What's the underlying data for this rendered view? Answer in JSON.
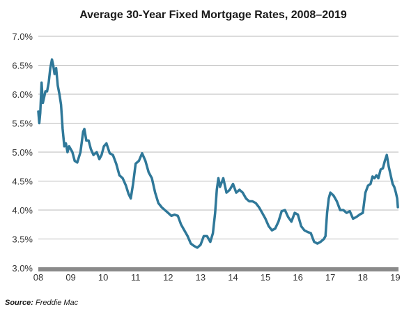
{
  "chart_data": {
    "type": "line",
    "title": "Average 30-Year Fixed Mortgage Rates, 2008–2019",
    "xlabel": "",
    "ylabel": "",
    "ylim": [
      3.0,
      7.0
    ],
    "xlim": [
      2008,
      2019.1
    ],
    "yticks": [
      3.0,
      3.5,
      4.0,
      4.5,
      5.0,
      5.5,
      6.0,
      6.5,
      7.0
    ],
    "ytick_labels": [
      "3.0%",
      "3.5%",
      "4.0%",
      "4.5%",
      "5.0%",
      "5.5%",
      "6.0%",
      "6.5%",
      "7.0%"
    ],
    "xticks": [
      2008,
      2009,
      2010,
      2011,
      2012,
      2013,
      2014,
      2015,
      2016,
      2017,
      2018,
      2019
    ],
    "xtick_labels": [
      "08",
      "09",
      "10",
      "11",
      "12",
      "13",
      "14",
      "15",
      "16",
      "17",
      "18",
      "19"
    ],
    "grid": true,
    "line_color": "#2f7899",
    "series": [
      {
        "name": "30-Year Fixed Rate",
        "x": [
          2008.0,
          2008.03,
          2008.06,
          2008.1,
          2008.14,
          2008.18,
          2008.22,
          2008.27,
          2008.32,
          2008.37,
          2008.42,
          2008.46,
          2008.5,
          2008.55,
          2008.6,
          2008.65,
          2008.7,
          2008.75,
          2008.8,
          2008.85,
          2008.9,
          2008.95,
          2009.0,
          2009.05,
          2009.12,
          2009.2,
          2009.3,
          2009.38,
          2009.42,
          2009.48,
          2009.55,
          2009.62,
          2009.7,
          2009.8,
          2009.88,
          2009.95,
          2010.02,
          2010.1,
          2010.2,
          2010.3,
          2010.4,
          2010.5,
          2010.6,
          2010.7,
          2010.78,
          2010.85,
          2010.92,
          2011.0,
          2011.1,
          2011.2,
          2011.3,
          2011.4,
          2011.5,
          2011.6,
          2011.7,
          2011.8,
          2011.9,
          2012.0,
          2012.1,
          2012.2,
          2012.3,
          2012.4,
          2012.5,
          2012.6,
          2012.7,
          2012.8,
          2012.9,
          2013.0,
          2013.1,
          2013.2,
          2013.3,
          2013.38,
          2013.45,
          2013.5,
          2013.55,
          2013.6,
          2013.7,
          2013.8,
          2013.9,
          2014.0,
          2014.1,
          2014.2,
          2014.3,
          2014.4,
          2014.5,
          2014.6,
          2014.7,
          2014.8,
          2014.9,
          2015.0,
          2015.1,
          2015.2,
          2015.3,
          2015.4,
          2015.5,
          2015.6,
          2015.7,
          2015.8,
          2015.9,
          2016.0,
          2016.1,
          2016.2,
          2016.3,
          2016.4,
          2016.5,
          2016.6,
          2016.7,
          2016.8,
          2016.85,
          2016.9,
          2016.95,
          2017.0,
          2017.1,
          2017.2,
          2017.3,
          2017.4,
          2017.5,
          2017.6,
          2017.7,
          2017.8,
          2017.9,
          2018.0,
          2018.08,
          2018.16,
          2018.24,
          2018.3,
          2018.36,
          2018.42,
          2018.48,
          2018.55,
          2018.62,
          2018.68,
          2018.74,
          2018.8,
          2018.86,
          2018.92,
          2018.97,
          2019.02,
          2019.06,
          2019.08
        ],
        "values": [
          5.7,
          5.5,
          5.68,
          6.2,
          5.85,
          5.95,
          6.05,
          6.05,
          6.2,
          6.45,
          6.6,
          6.5,
          6.35,
          6.45,
          6.15,
          6.0,
          5.82,
          5.4,
          5.1,
          5.15,
          5.0,
          5.1,
          5.05,
          5.0,
          4.85,
          4.82,
          5.0,
          5.35,
          5.4,
          5.2,
          5.2,
          5.05,
          4.95,
          5.0,
          4.88,
          4.95,
          5.1,
          5.15,
          4.98,
          4.95,
          4.8,
          4.6,
          4.55,
          4.42,
          4.28,
          4.2,
          4.45,
          4.8,
          4.85,
          4.98,
          4.85,
          4.65,
          4.55,
          4.3,
          4.12,
          4.05,
          4.0,
          3.95,
          3.9,
          3.92,
          3.9,
          3.75,
          3.65,
          3.55,
          3.42,
          3.38,
          3.35,
          3.4,
          3.55,
          3.55,
          3.45,
          3.6,
          3.95,
          4.35,
          4.55,
          4.4,
          4.55,
          4.3,
          4.35,
          4.45,
          4.3,
          4.35,
          4.3,
          4.2,
          4.15,
          4.15,
          4.12,
          4.05,
          3.95,
          3.85,
          3.72,
          3.65,
          3.68,
          3.8,
          3.98,
          4.0,
          3.88,
          3.8,
          3.95,
          3.92,
          3.72,
          3.65,
          3.62,
          3.6,
          3.45,
          3.42,
          3.45,
          3.5,
          3.55,
          3.95,
          4.2,
          4.3,
          4.25,
          4.15,
          4.0,
          4.0,
          3.95,
          3.98,
          3.85,
          3.88,
          3.92,
          3.95,
          4.3,
          4.42,
          4.45,
          4.58,
          4.55,
          4.6,
          4.55,
          4.7,
          4.72,
          4.85,
          4.95,
          4.75,
          4.6,
          4.45,
          4.4,
          4.3,
          4.2,
          4.05
        ]
      }
    ]
  },
  "source": {
    "label": "Source:",
    "text": " Freddie Mac"
  }
}
